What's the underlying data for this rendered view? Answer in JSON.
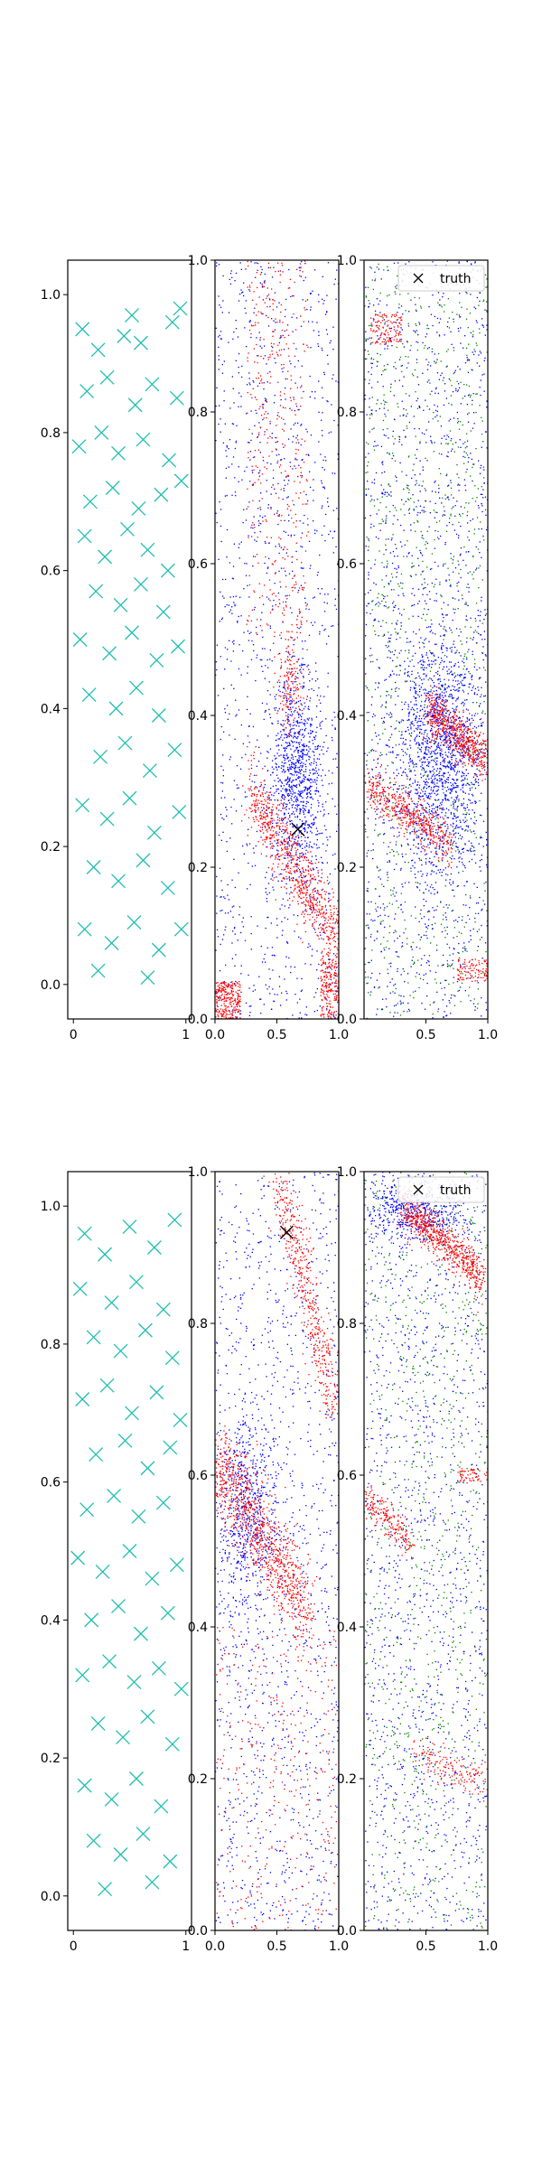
{
  "chart_data": [
    {
      "type": "scatter",
      "title": "",
      "xlabel": "",
      "ylabel": "",
      "xlim": [
        -0.05,
        1.05
      ],
      "ylim": [
        -0.05,
        1.05
      ],
      "xticks": [
        "0",
        "1"
      ],
      "yticks": [
        "0.0",
        "0.2",
        "0.4",
        "0.6",
        "0.8",
        "1.0"
      ],
      "series": [
        {
          "name": "samples",
          "marker": "x",
          "color": "#1fbfb0",
          "points": [
            [
              0.08,
              0.95
            ],
            [
              0.22,
              0.92
            ],
            [
              0.45,
              0.94
            ],
            [
              0.52,
              0.97
            ],
            [
              0.6,
              0.93
            ],
            [
              0.88,
              0.96
            ],
            [
              0.95,
              0.98
            ],
            [
              0.12,
              0.86
            ],
            [
              0.3,
              0.88
            ],
            [
              0.55,
              0.84
            ],
            [
              0.7,
              0.87
            ],
            [
              0.92,
              0.85
            ],
            [
              0.05,
              0.78
            ],
            [
              0.25,
              0.8
            ],
            [
              0.4,
              0.77
            ],
            [
              0.62,
              0.79
            ],
            [
              0.85,
              0.76
            ],
            [
              0.15,
              0.7
            ],
            [
              0.35,
              0.72
            ],
            [
              0.58,
              0.69
            ],
            [
              0.78,
              0.71
            ],
            [
              0.96,
              0.73
            ],
            [
              0.1,
              0.65
            ],
            [
              0.28,
              0.62
            ],
            [
              0.48,
              0.66
            ],
            [
              0.66,
              0.63
            ],
            [
              0.84,
              0.6
            ],
            [
              0.2,
              0.57
            ],
            [
              0.42,
              0.55
            ],
            [
              0.6,
              0.58
            ],
            [
              0.8,
              0.54
            ],
            [
              0.06,
              0.5
            ],
            [
              0.32,
              0.48
            ],
            [
              0.52,
              0.51
            ],
            [
              0.74,
              0.47
            ],
            [
              0.93,
              0.49
            ],
            [
              0.14,
              0.42
            ],
            [
              0.38,
              0.4
            ],
            [
              0.56,
              0.43
            ],
            [
              0.76,
              0.39
            ],
            [
              0.24,
              0.33
            ],
            [
              0.46,
              0.35
            ],
            [
              0.68,
              0.31
            ],
            [
              0.9,
              0.34
            ],
            [
              0.08,
              0.26
            ],
            [
              0.3,
              0.24
            ],
            [
              0.5,
              0.27
            ],
            [
              0.72,
              0.22
            ],
            [
              0.94,
              0.25
            ],
            [
              0.18,
              0.17
            ],
            [
              0.4,
              0.15
            ],
            [
              0.62,
              0.18
            ],
            [
              0.84,
              0.14
            ],
            [
              0.1,
              0.08
            ],
            [
              0.34,
              0.06
            ],
            [
              0.54,
              0.09
            ],
            [
              0.76,
              0.05
            ],
            [
              0.96,
              0.08
            ],
            [
              0.22,
              0.02
            ],
            [
              0.66,
              0.01
            ]
          ]
        }
      ]
    },
    {
      "type": "scatter",
      "xlim": [
        0,
        1
      ],
      "ylim": [
        0,
        1
      ],
      "xticks": [
        "0.0",
        "0.5",
        "1.0"
      ],
      "yticks": [
        "0.0",
        "0.2",
        "0.4",
        "0.6",
        "0.8",
        "1.0"
      ],
      "series": [
        {
          "name": "blue points",
          "color": "#0000ff"
        },
        {
          "name": "red points",
          "color": "#ff0000"
        },
        {
          "name": "truth",
          "marker": "x",
          "color": "#000000",
          "points": [
            [
              0.67,
              0.25
            ]
          ]
        }
      ]
    },
    {
      "type": "scatter",
      "xlim": [
        0,
        1
      ],
      "ylim": [
        0,
        1
      ],
      "xticks": [
        "0.5",
        "1.0"
      ],
      "yticks": [
        "0.0",
        "0.2",
        "0.4",
        "0.6",
        "0.8",
        "1.0"
      ],
      "legend": {
        "label": "truth",
        "placement": "top-right"
      },
      "series": [
        {
          "name": "blue points",
          "color": "#0000ff"
        },
        {
          "name": "green points",
          "color": "#008000"
        },
        {
          "name": "red points",
          "color": "#ff0000"
        }
      ]
    },
    {
      "type": "scatter",
      "xlim": [
        -0.05,
        1.05
      ],
      "ylim": [
        -0.05,
        1.05
      ],
      "xticks": [
        "0",
        "1"
      ],
      "yticks": [
        "0.0",
        "0.2",
        "0.4",
        "0.6",
        "0.8",
        "1.0"
      ],
      "series": [
        {
          "name": "samples",
          "marker": "x",
          "color": "#1fbfb0",
          "points": [
            [
              0.1,
              0.96
            ],
            [
              0.28,
              0.93
            ],
            [
              0.5,
              0.97
            ],
            [
              0.72,
              0.94
            ],
            [
              0.9,
              0.98
            ],
            [
              0.06,
              0.88
            ],
            [
              0.34,
              0.86
            ],
            [
              0.56,
              0.89
            ],
            [
              0.8,
              0.85
            ],
            [
              0.18,
              0.81
            ],
            [
              0.42,
              0.79
            ],
            [
              0.64,
              0.82
            ],
            [
              0.88,
              0.78
            ],
            [
              0.08,
              0.72
            ],
            [
              0.3,
              0.74
            ],
            [
              0.52,
              0.7
            ],
            [
              0.74,
              0.73
            ],
            [
              0.95,
              0.69
            ],
            [
              0.2,
              0.64
            ],
            [
              0.46,
              0.66
            ],
            [
              0.66,
              0.62
            ],
            [
              0.86,
              0.65
            ],
            [
              0.12,
              0.56
            ],
            [
              0.36,
              0.58
            ],
            [
              0.58,
              0.55
            ],
            [
              0.8,
              0.57
            ],
            [
              0.04,
              0.49
            ],
            [
              0.26,
              0.47
            ],
            [
              0.5,
              0.5
            ],
            [
              0.7,
              0.46
            ],
            [
              0.92,
              0.48
            ],
            [
              0.16,
              0.4
            ],
            [
              0.4,
              0.42
            ],
            [
              0.6,
              0.38
            ],
            [
              0.84,
              0.41
            ],
            [
              0.08,
              0.32
            ],
            [
              0.32,
              0.34
            ],
            [
              0.54,
              0.31
            ],
            [
              0.76,
              0.33
            ],
            [
              0.96,
              0.3
            ],
            [
              0.22,
              0.25
            ],
            [
              0.44,
              0.23
            ],
            [
              0.66,
              0.26
            ],
            [
              0.88,
              0.22
            ],
            [
              0.1,
              0.16
            ],
            [
              0.34,
              0.14
            ],
            [
              0.56,
              0.17
            ],
            [
              0.78,
              0.13
            ],
            [
              0.18,
              0.08
            ],
            [
              0.42,
              0.06
            ],
            [
              0.62,
              0.09
            ],
            [
              0.86,
              0.05
            ],
            [
              0.28,
              0.01
            ],
            [
              0.7,
              0.02
            ]
          ]
        }
      ]
    },
    {
      "type": "scatter",
      "xlim": [
        0,
        1
      ],
      "ylim": [
        0,
        1
      ],
      "xticks": [
        "0.0",
        "0.5",
        "1.0"
      ],
      "yticks": [
        "0.0",
        "0.2",
        "0.4",
        "0.6",
        "0.8",
        "1.0"
      ],
      "series": [
        {
          "name": "blue points",
          "color": "#0000ff"
        },
        {
          "name": "red points",
          "color": "#ff0000"
        },
        {
          "name": "truth",
          "marker": "x",
          "color": "#000000",
          "points": [
            [
              0.58,
              0.92
            ]
          ]
        }
      ]
    },
    {
      "type": "scatter",
      "xlim": [
        0,
        1
      ],
      "ylim": [
        0,
        1
      ],
      "xticks": [
        "0.5",
        "1.0"
      ],
      "yticks": [
        "0.0",
        "0.2",
        "0.4",
        "0.6",
        "0.8",
        "1.0"
      ],
      "legend": {
        "label": "truth",
        "placement": "top-right"
      },
      "series": [
        {
          "name": "blue points",
          "color": "#0000ff"
        },
        {
          "name": "green points",
          "color": "#008000"
        },
        {
          "name": "red points",
          "color": "#ff0000"
        }
      ]
    }
  ]
}
